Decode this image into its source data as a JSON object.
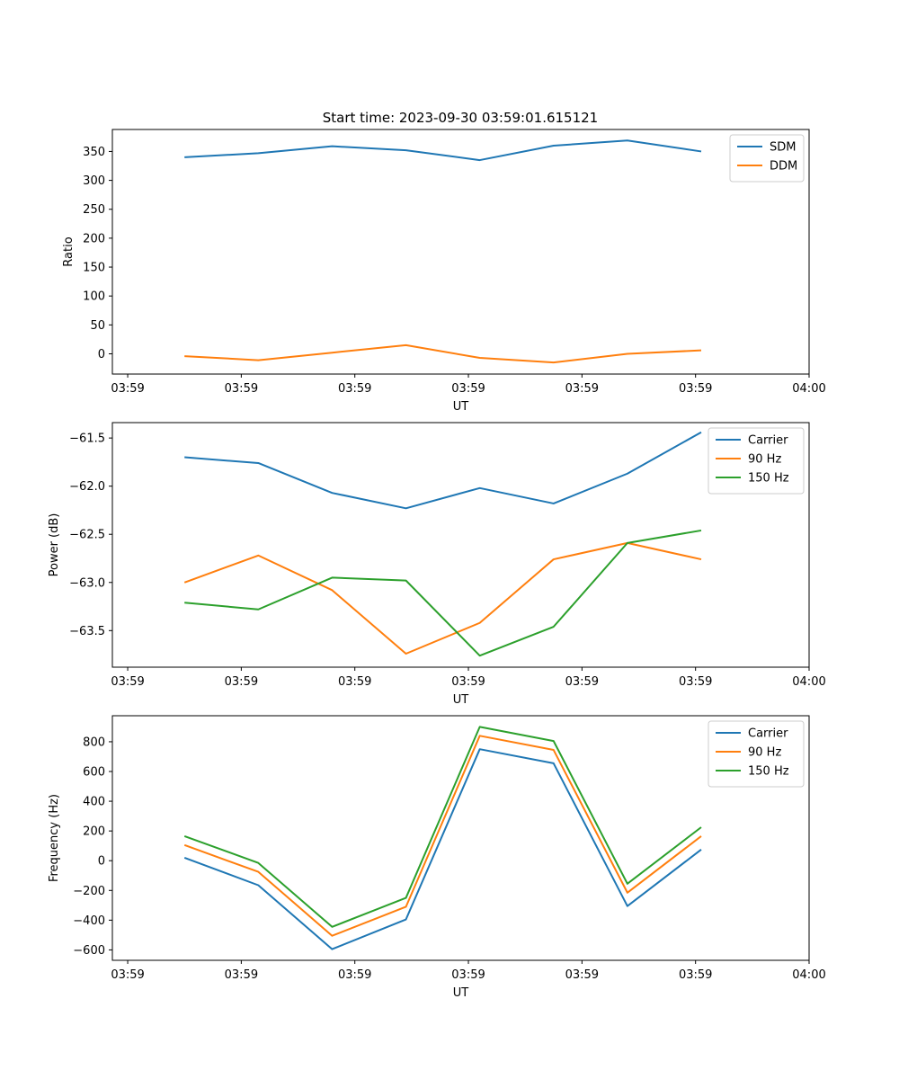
{
  "figure_title": "Start time: 2023-09-30 03:59:01.615121",
  "colors": {
    "c0": "#1f77b4",
    "c1": "#ff7f0e",
    "c2": "#2ca02c"
  },
  "chart_data": [
    {
      "type": "line",
      "title": "Start time: 2023-09-30 03:59:01.615121",
      "xlabel": "UT",
      "ylabel": "Ratio",
      "x_tick_labels": [
        "03:59",
        "03:59",
        "03:59",
        "03:59",
        "03:59",
        "03:59",
        "04:00"
      ],
      "xlim": [
        -0.135,
        6.0
      ],
      "x": [
        0.5,
        1.15,
        1.8,
        2.45,
        3.1,
        3.75,
        4.4,
        5.05
      ],
      "ylim": [
        -35,
        388
      ],
      "yticks": [
        0,
        50,
        100,
        150,
        200,
        250,
        300,
        350
      ],
      "legend_loc": "upper right",
      "series": [
        {
          "name": "SDM",
          "color": "#1f77b4",
          "values": [
            340,
            347,
            359,
            352,
            335,
            360,
            369,
            350
          ]
        },
        {
          "name": "DDM",
          "color": "#ff7f0e",
          "values": [
            -4,
            -11,
            2,
            15,
            -7,
            -15,
            0,
            6
          ]
        }
      ]
    },
    {
      "type": "line",
      "title": "",
      "xlabel": "UT",
      "ylabel": "Power (dB)",
      "x_tick_labels": [
        "03:59",
        "03:59",
        "03:59",
        "03:59",
        "03:59",
        "03:59",
        "04:00"
      ],
      "xlim": [
        -0.135,
        6.0
      ],
      "x": [
        0.5,
        1.15,
        1.8,
        2.45,
        3.1,
        3.75,
        4.4,
        5.05
      ],
      "ylim": [
        -63.88,
        -61.34
      ],
      "yticks": [
        -63.5,
        -63.0,
        -62.5,
        -62.0,
        -61.5
      ],
      "ytick_labels": [
        "−63.5",
        "−63.0",
        "−62.5",
        "−62.0",
        "−61.5"
      ],
      "legend_loc": "upper right",
      "series": [
        {
          "name": "Carrier",
          "color": "#1f77b4",
          "values": [
            -61.7,
            -61.76,
            -62.07,
            -62.23,
            -62.02,
            -62.18,
            -61.87,
            -61.44
          ]
        },
        {
          "name": "90 Hz",
          "color": "#ff7f0e",
          "values": [
            -63.0,
            -62.72,
            -63.08,
            -63.74,
            -63.42,
            -62.76,
            -62.59,
            -62.76
          ]
        },
        {
          "name": "150 Hz",
          "color": "#2ca02c",
          "values": [
            -63.21,
            -63.28,
            -62.95,
            -62.98,
            -63.76,
            -63.46,
            -62.59,
            -62.46
          ]
        }
      ]
    },
    {
      "type": "line",
      "title": "",
      "xlabel": "UT",
      "ylabel": "Frequency (Hz)",
      "x_tick_labels": [
        "03:59",
        "03:59",
        "03:59",
        "03:59",
        "03:59",
        "03:59",
        "04:00"
      ],
      "xlim": [
        -0.135,
        6.0
      ],
      "x": [
        0.5,
        1.15,
        1.8,
        2.45,
        3.1,
        3.75,
        4.4,
        5.05
      ],
      "ylim": [
        -670,
        975
      ],
      "yticks": [
        -600,
        -400,
        -200,
        0,
        200,
        400,
        600,
        800
      ],
      "ytick_labels": [
        "−600",
        "−400",
        "−200",
        "0",
        "200",
        "400",
        "600",
        "800"
      ],
      "legend_loc": "upper right",
      "series": [
        {
          "name": "Carrier",
          "color": "#1f77b4",
          "values": [
            20,
            -165,
            -595,
            -395,
            750,
            655,
            -305,
            75
          ]
        },
        {
          "name": "90 Hz",
          "color": "#ff7f0e",
          "values": [
            105,
            -75,
            -505,
            -310,
            840,
            745,
            -215,
            165
          ]
        },
        {
          "name": "150 Hz",
          "color": "#2ca02c",
          "values": [
            165,
            -15,
            -445,
            -250,
            900,
            805,
            -155,
            225
          ]
        }
      ]
    }
  ]
}
